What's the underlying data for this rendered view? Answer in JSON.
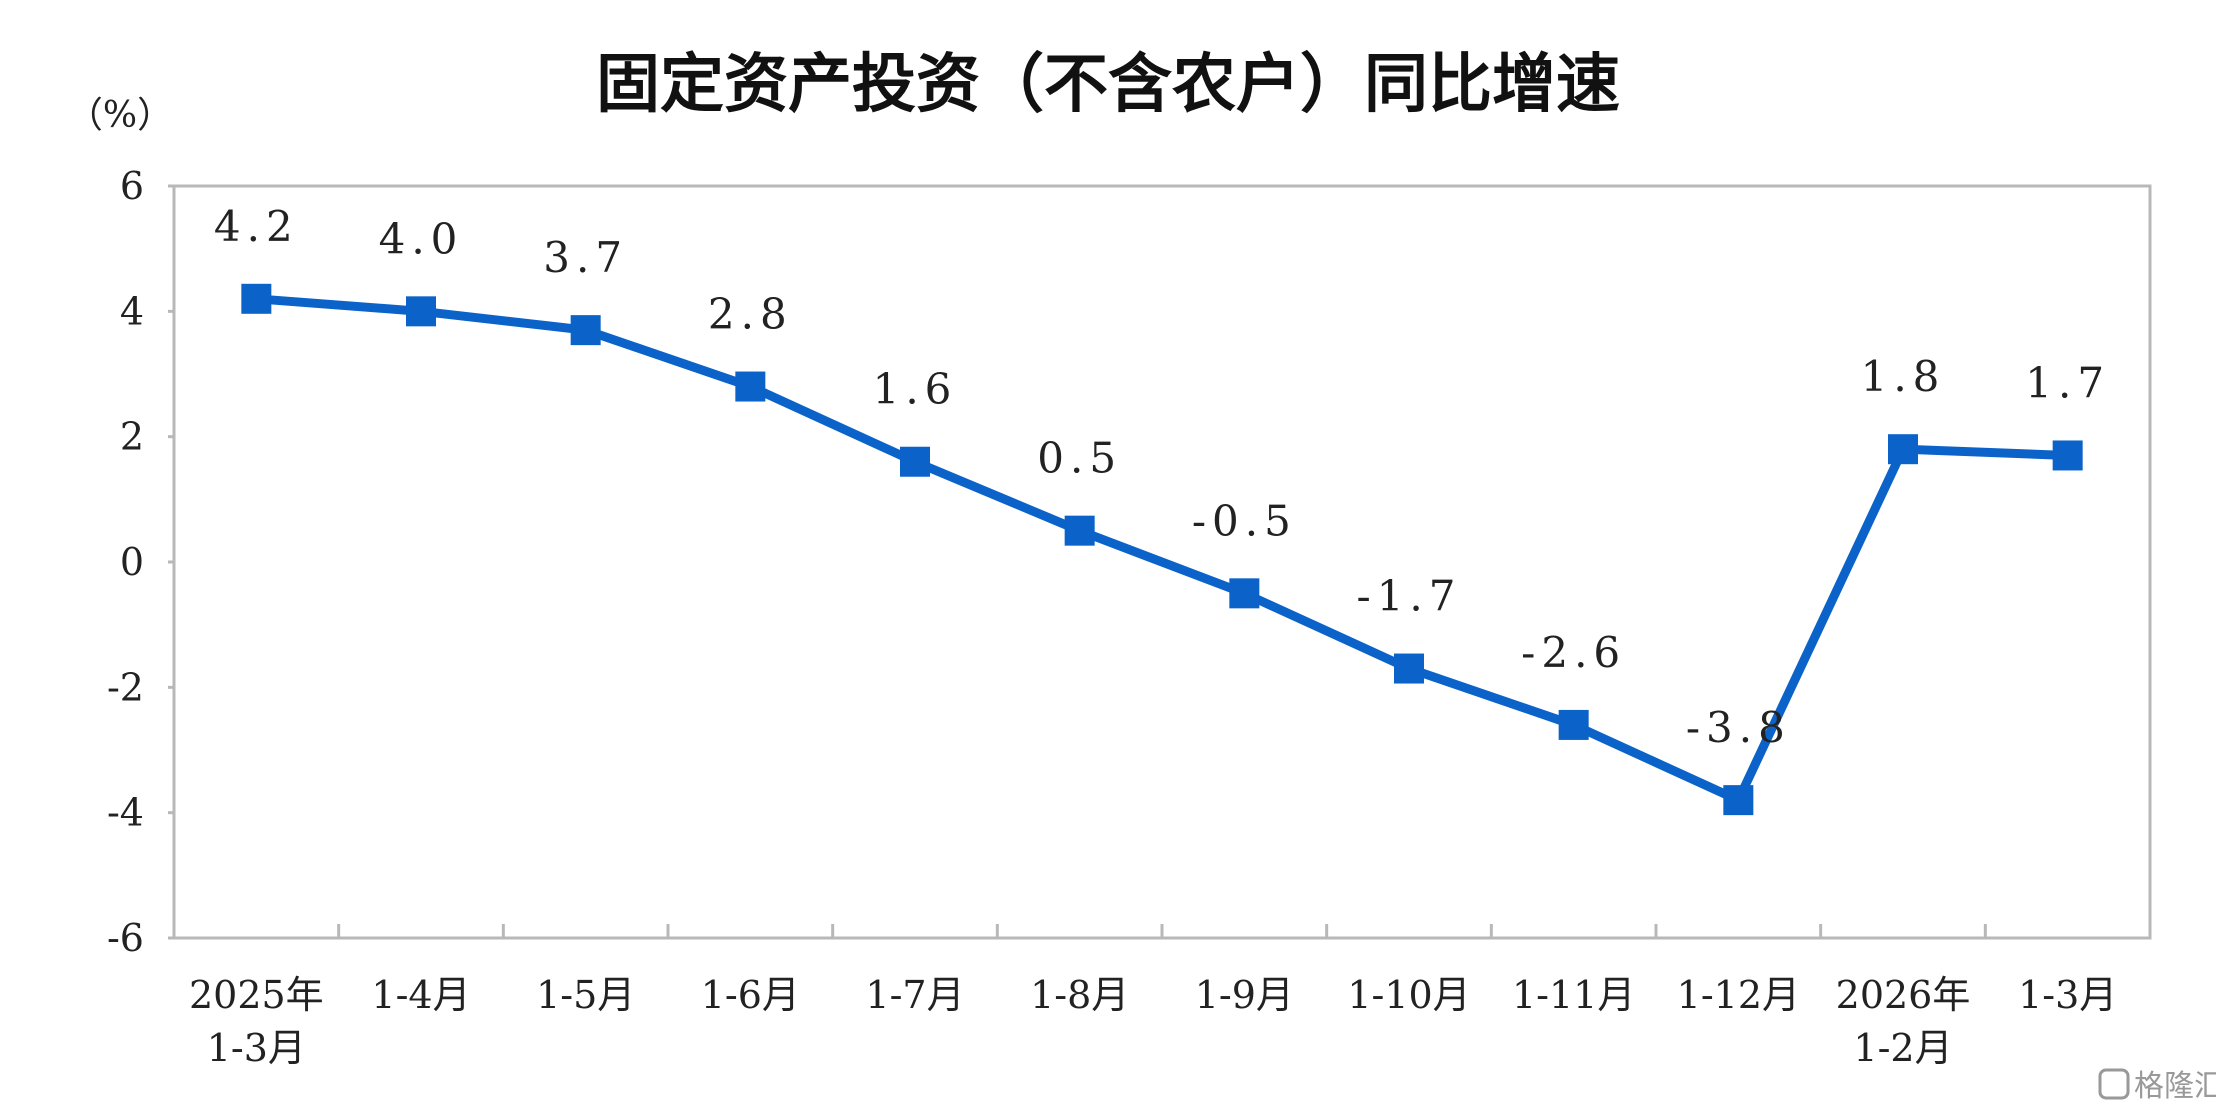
{
  "chart_data": {
    "type": "line",
    "title": "固定资产投资（不含农户）同比增速",
    "ylabel": "（%）",
    "xlabel": "",
    "ylim": [
      -6,
      6
    ],
    "yticks": [
      6,
      4,
      2,
      0,
      -2,
      -4,
      -6
    ],
    "categories": [
      [
        "2025年",
        "1-3月"
      ],
      [
        "1-4月"
      ],
      [
        "1-5月"
      ],
      [
        "1-6月"
      ],
      [
        "1-7月"
      ],
      [
        "1-8月"
      ],
      [
        "1-9月"
      ],
      [
        "1-10月"
      ],
      [
        "1-11月"
      ],
      [
        "1-12月"
      ],
      [
        "2026年",
        "1-2月"
      ],
      [
        "1-3月"
      ]
    ],
    "series": [
      {
        "values": [
          4.2,
          4.0,
          3.7,
          2.8,
          1.6,
          0.5,
          -0.5,
          -1.7,
          -2.6,
          -3.8,
          1.8,
          1.7
        ],
        "labels": [
          "4.2",
          "4.0",
          "3.7",
          "2.8",
          "1.6",
          "0.5",
          "-0.5",
          "-1.7",
          "-2.6",
          "-3.8",
          "1.8",
          "1.7"
        ],
        "color": "#0b63c9"
      }
    ],
    "grid": false,
    "legend": "none"
  },
  "watermark": {
    "text": "格隆汇",
    "icon": "glh-logo-icon"
  }
}
